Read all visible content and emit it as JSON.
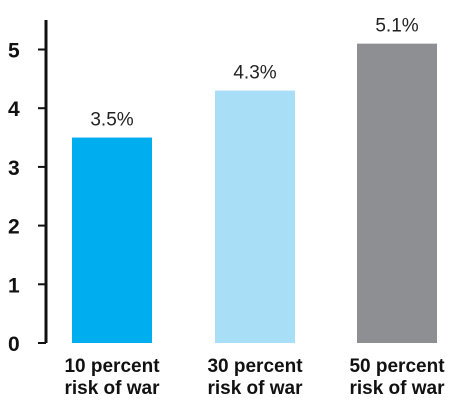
{
  "chart_data": {
    "type": "bar",
    "title": "",
    "xlabel": "",
    "ylabel": "",
    "ylim": [
      0,
      5.5
    ],
    "yticks": [
      0,
      1,
      2,
      3,
      4,
      5
    ],
    "grid": false,
    "categories": [
      [
        "10 percent",
        "risk of war"
      ],
      [
        "30 percent",
        "risk of war"
      ],
      [
        "50 percent",
        "risk of war"
      ]
    ],
    "values": [
      3.5,
      4.3,
      5.1
    ],
    "value_labels": [
      "3.5%",
      "4.3%",
      "5.1%"
    ],
    "colors": [
      "#00aeef",
      "#a9def7",
      "#8e8f92"
    ],
    "axis_color": "#111111"
  }
}
